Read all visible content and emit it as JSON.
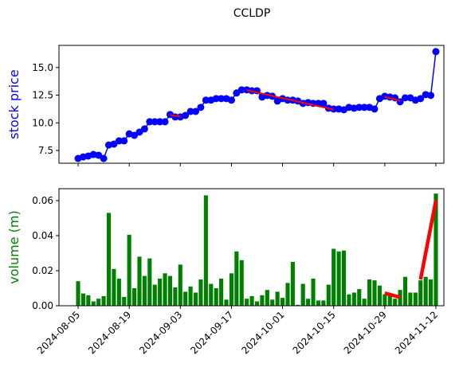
{
  "title": "CCLDP",
  "chart_data": [
    {
      "type": "line",
      "ylabel": "stock price",
      "ylabel_color": "#0000ff",
      "color": "#0000ff",
      "marker": "circle",
      "sharex": true,
      "values": [
        6.78,
        6.92,
        7.0,
        7.14,
        7.07,
        6.78,
        8.0,
        8.08,
        8.37,
        8.37,
        9.0,
        8.87,
        9.16,
        9.45,
        10.1,
        10.1,
        10.1,
        10.1,
        10.75,
        10.53,
        10.53,
        10.67,
        11.03,
        11.03,
        11.4,
        12.05,
        12.05,
        12.19,
        12.19,
        12.19,
        12.05,
        12.7,
        12.98,
        12.98,
        12.9,
        12.9,
        12.33,
        12.48,
        12.4,
        11.97,
        12.19,
        12.05,
        12.05,
        11.97,
        11.76,
        11.83,
        11.76,
        11.76,
        11.76,
        11.32,
        11.25,
        11.25,
        11.18,
        11.4,
        11.32,
        11.4,
        11.4,
        11.4,
        11.25,
        12.19,
        12.4,
        12.33,
        12.26,
        11.9,
        12.26,
        12.26,
        12.05,
        12.19,
        12.55,
        12.48,
        16.44
      ],
      "ylim": [
        6.35,
        17.0
      ],
      "yticks": [
        7.5,
        {
          "value": 10,
          "label": "10.0"
        },
        12.5,
        {
          "value": 15,
          "label": "15.0"
        }
      ],
      "trend_color": "#ff0000",
      "trend_lines": [
        {
          "start": 18,
          "end": 20,
          "values": [
            10.72,
            10.55
          ]
        },
        {
          "start": 33,
          "end": 50,
          "values": [
            12.95,
            11.2
          ]
        },
        {
          "start": 60,
          "end": 63,
          "values": [
            12.35,
            12.0
          ]
        }
      ]
    },
    {
      "type": "bar",
      "ylabel": "volume (m)",
      "ylabel_color": "#008000",
      "color": "#008000",
      "categories": [
        "2024-08-05",
        null,
        null,
        null,
        null,
        null,
        null,
        null,
        null,
        null,
        "2024-08-19",
        null,
        null,
        null,
        null,
        null,
        null,
        null,
        null,
        null,
        "2024-09-03",
        null,
        null,
        null,
        null,
        null,
        null,
        null,
        null,
        null,
        "2024-09-17",
        null,
        null,
        null,
        null,
        null,
        null,
        null,
        null,
        null,
        "2024-10-01",
        null,
        null,
        null,
        null,
        null,
        null,
        null,
        null,
        null,
        "2024-10-15",
        null,
        null,
        null,
        null,
        null,
        null,
        null,
        null,
        null,
        "2024-10-29",
        null,
        null,
        null,
        null,
        null,
        null,
        null,
        null,
        null,
        "2024-11-12"
      ],
      "values": [
        0.014,
        0.007,
        0.006,
        0.0025,
        0.004,
        0.0055,
        0.053,
        0.021,
        0.0155,
        0.005,
        0.0405,
        0.01,
        0.028,
        0.017,
        0.027,
        0.012,
        0.0155,
        0.0185,
        0.017,
        0.0105,
        0.0235,
        0.008,
        0.011,
        0.0075,
        0.015,
        0.063,
        0.0125,
        0.01,
        0.0155,
        0.0035,
        0.0185,
        0.031,
        0.026,
        0.004,
        0.0055,
        0.0025,
        0.006,
        0.009,
        0.0035,
        0.008,
        0.0045,
        0.013,
        0.025,
        0.0005,
        0.0125,
        0.004,
        0.0155,
        0.003,
        0.003,
        0.012,
        0.0325,
        0.031,
        0.0315,
        0.0065,
        0.0075,
        0.0095,
        0.004,
        0.015,
        0.0145,
        0.0115,
        0.0065,
        0.006,
        0.004,
        0.009,
        0.0165,
        0.0075,
        0.0075,
        0.0145,
        0.0165,
        0.015,
        0.064
      ],
      "ylim": [
        0,
        0.0668
      ],
      "yticks": [
        {
          "value": 0,
          "label": "0.00"
        },
        {
          "value": 0.02,
          "label": "0.02"
        },
        {
          "value": 0.04,
          "label": "0.04"
        },
        {
          "value": 0.06,
          "label": "0.06"
        }
      ],
      "trend_color": "#ff0000",
      "trend_lines": [
        {
          "start": 60,
          "end": 63,
          "values": [
            0.0072,
            0.0048
          ]
        },
        {
          "start": 67,
          "end": 70,
          "values": [
            0.015,
            0.06
          ]
        }
      ]
    }
  ]
}
